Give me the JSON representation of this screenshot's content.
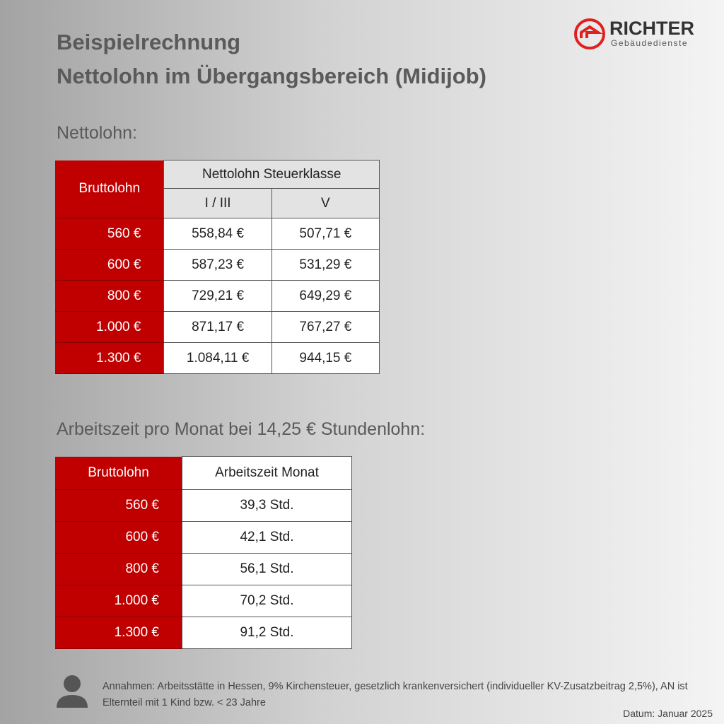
{
  "header": {
    "title_line1": "Beispielrechnung",
    "title_line2": "Nettolohn im Übergangsbereich (Midijob)"
  },
  "logo": {
    "name": "RICHTER",
    "subtitle": "Gebäudedienste"
  },
  "section1": {
    "heading": "Nettolohn:",
    "table": {
      "header": {
        "col0": "Bruttolohn",
        "group": "Nettolohn Steuerklasse",
        "sub": [
          "I / III",
          "V"
        ]
      },
      "rows": [
        [
          "560 €",
          "558,84 €",
          "507,71 €"
        ],
        [
          "600 €",
          "587,23 €",
          "531,29 €"
        ],
        [
          "800 €",
          "729,21 €",
          "649,29 €"
        ],
        [
          "1.000 €",
          "871,17 €",
          "767,27 €"
        ],
        [
          "1.300 €",
          "1.084,11 €",
          "944,15 €"
        ]
      ]
    }
  },
  "section2": {
    "heading": "Arbeitszeit pro Monat bei 14,25 € Stundenlohn:",
    "table": {
      "header": [
        "Bruttolohn",
        "Arbeitszeit Monat"
      ],
      "rows": [
        [
          "560 €",
          "39,3 Std."
        ],
        [
          "600 €",
          "42,1 Std."
        ],
        [
          "800 €",
          "56,1 Std."
        ],
        [
          "1.000 €",
          "70,2 Std."
        ],
        [
          "1.300 €",
          "91,2 Std."
        ]
      ]
    }
  },
  "footnote": {
    "text": "Annahmen: Arbeitsstätte in Hessen, 9% Kirchensteuer, gesetzlich krankenversichert (individueller KV-Zusatzbeitrag 2,5%), AN ist Elternteil mit 1 Kind bzw. < 23 Jahre"
  },
  "date": "Datum: Januar 2025"
}
